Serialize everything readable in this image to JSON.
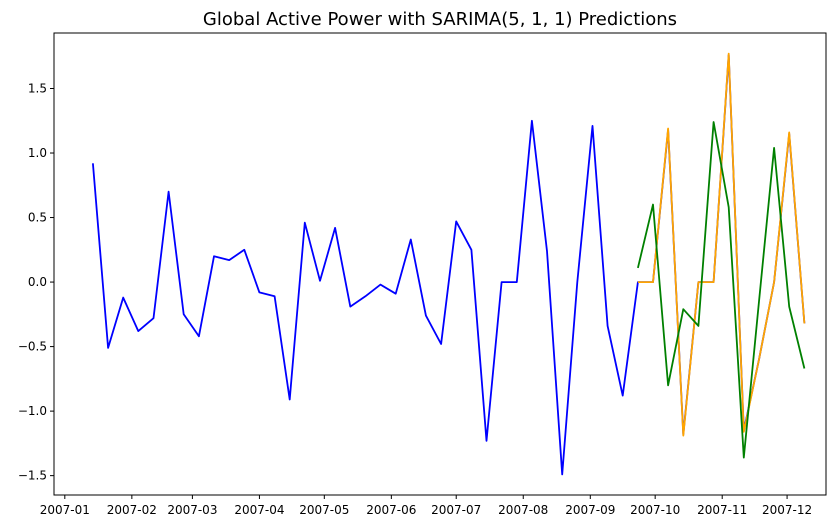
{
  "chart_data": {
    "type": "line",
    "title": "Global Active Power with SARIMA(5, 1, 1) Predictions",
    "xlabel": "",
    "ylabel": "",
    "x_ticks": [
      "2007-01",
      "2007-02",
      "2007-03",
      "2007-04",
      "2007-05",
      "2007-06",
      "2007-07",
      "2007-08",
      "2007-09",
      "2007-10",
      "2007-11",
      "2007-12"
    ],
    "y_ticks": [
      "−1.5",
      "−1.0",
      "−0.5",
      "0.0",
      "0.5",
      "1.0",
      "1.5"
    ],
    "ylim": [
      -1.65,
      1.93
    ],
    "xlim": [
      "2006-12-27",
      "2007-12-19"
    ],
    "grid": false,
    "legend": "none",
    "series": [
      {
        "color": "#0000ff",
        "x": [
          "2007-01-14",
          "2007-01-21",
          "2007-01-28",
          "2007-02-04",
          "2007-02-11",
          "2007-02-18",
          "2007-02-25",
          "2007-03-04",
          "2007-03-11",
          "2007-03-18",
          "2007-03-25",
          "2007-04-01",
          "2007-04-08",
          "2007-04-15",
          "2007-04-22",
          "2007-04-29",
          "2007-05-06",
          "2007-05-13",
          "2007-05-20",
          "2007-05-27",
          "2007-06-03",
          "2007-06-10",
          "2007-06-17",
          "2007-06-24",
          "2007-07-01",
          "2007-07-08",
          "2007-07-15",
          "2007-07-22",
          "2007-07-29",
          "2007-08-05",
          "2007-08-12",
          "2007-08-19",
          "2007-08-26",
          "2007-09-02",
          "2007-09-09",
          "2007-09-16",
          "2007-09-23",
          "2007-09-30",
          "2007-10-07",
          "2007-10-14",
          "2007-10-21",
          "2007-10-28",
          "2007-11-04",
          "2007-11-11",
          "2007-11-18",
          "2007-11-25",
          "2007-12-02",
          "2007-12-09"
        ],
        "values": [
          0.92,
          -0.51,
          -0.12,
          -0.38,
          -0.28,
          0.7,
          -0.25,
          -0.42,
          0.2,
          0.17,
          0.25,
          -0.08,
          -0.11,
          -0.91,
          0.46,
          0.01,
          0.42,
          -0.19,
          -0.11,
          -0.02,
          -0.09,
          0.33,
          -0.26,
          -0.48,
          0.47,
          0.25,
          -1.23,
          0.0,
          0.0,
          1.25,
          0.24,
          -1.49,
          0.0,
          1.21,
          -0.34,
          -0.88,
          0.0,
          0.0,
          1.18,
          -1.18,
          0.0,
          0.0,
          1.76,
          -1.15,
          -0.6,
          0.0,
          1.15,
          -0.32
        ]
      },
      {
        "color": "#ffa500",
        "x": [
          "2007-09-23",
          "2007-09-30",
          "2007-10-07",
          "2007-10-14",
          "2007-10-21",
          "2007-10-28",
          "2007-11-04",
          "2007-11-11",
          "2007-11-18",
          "2007-11-25",
          "2007-12-02",
          "2007-12-09"
        ],
        "values": [
          0.0,
          0.0,
          1.19,
          -1.19,
          0.0,
          0.0,
          1.77,
          -1.16,
          -0.6,
          0.0,
          1.16,
          -0.32
        ]
      },
      {
        "color": "#008000",
        "x": [
          "2007-09-23",
          "2007-09-30",
          "2007-10-07",
          "2007-10-14",
          "2007-10-21",
          "2007-10-28",
          "2007-11-04",
          "2007-11-11",
          "2007-11-18",
          "2007-11-25",
          "2007-12-02",
          "2007-12-09"
        ],
        "values": [
          0.11,
          0.6,
          -0.8,
          -0.21,
          -0.34,
          1.24,
          0.58,
          -1.36,
          -0.15,
          1.04,
          -0.19,
          -0.67
        ]
      }
    ]
  }
}
